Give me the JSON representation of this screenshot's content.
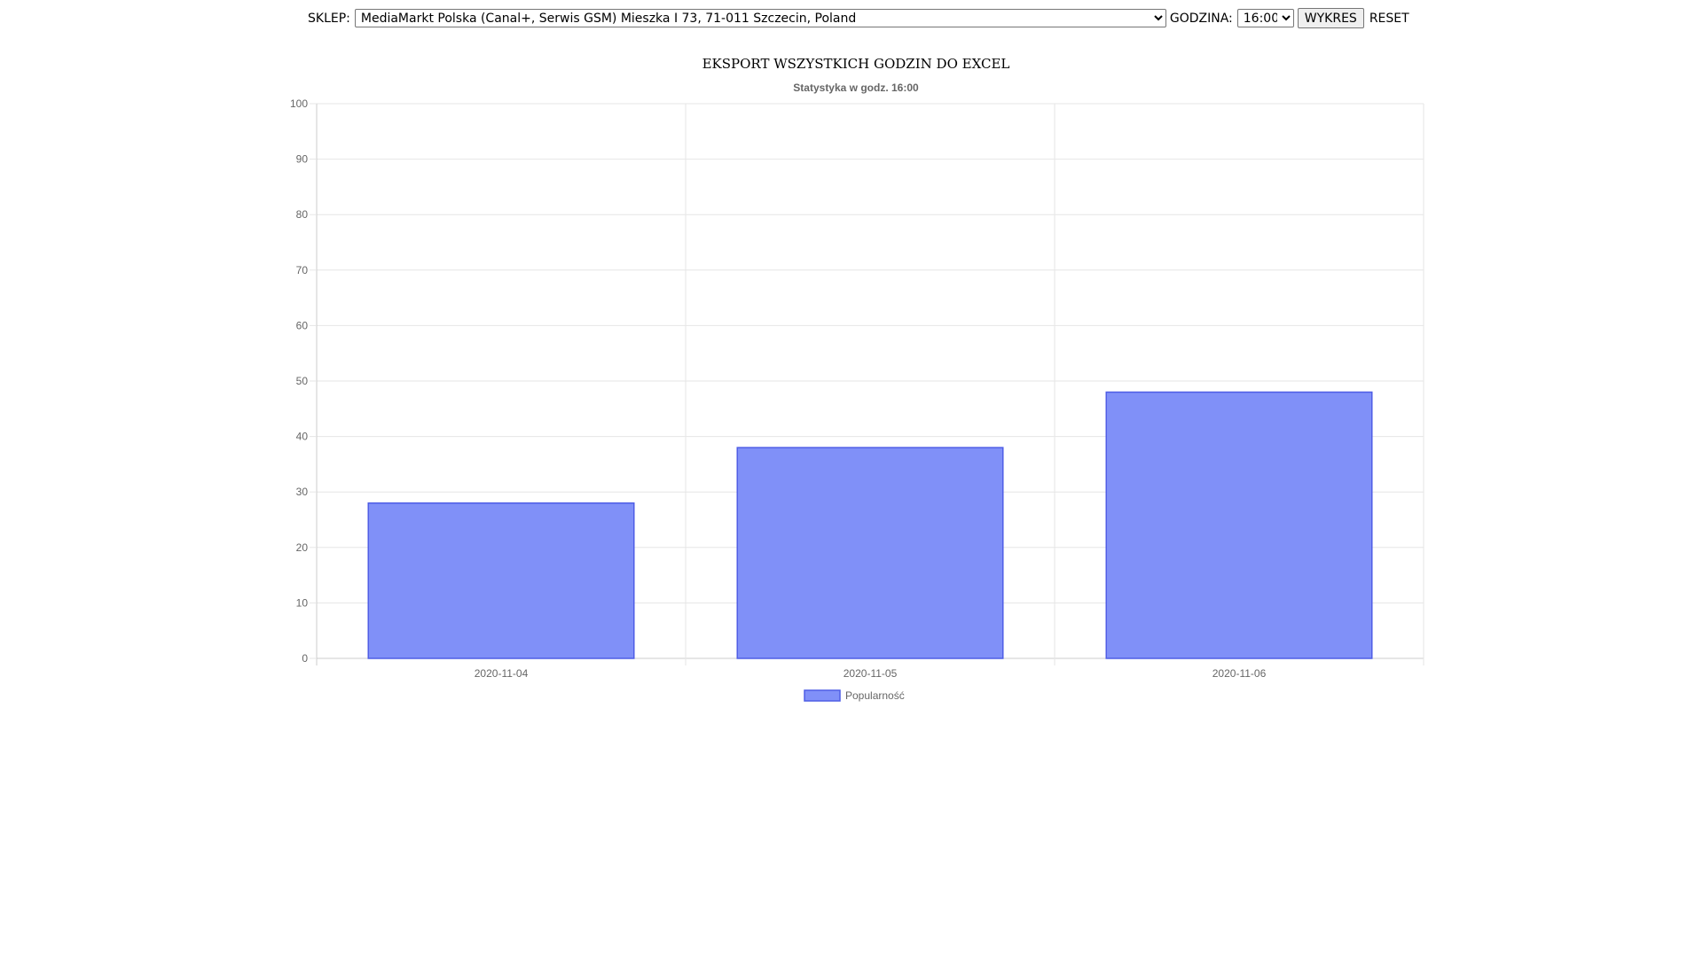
{
  "form": {
    "store_label": "SKLEP:",
    "store_selected": "MediaMarkt Polska (Canal+, Serwis GSM) Mieszka I 73, 71-011 Szczecin, Poland",
    "hour_label": "GODZINA:",
    "hour_selected": "16:00",
    "chart_button_label": "WYKRES",
    "reset_label": "RESET"
  },
  "export_link_label": "EKSPORT WSZYSTKICH GODZIN DO EXCEL",
  "chart_data": {
    "type": "bar",
    "title": "Statystyka w godz. 16:00",
    "categories": [
      "2020-11-04",
      "2020-11-05",
      "2020-11-06"
    ],
    "series": [
      {
        "name": "Popularność",
        "values": [
          28,
          38,
          48
        ]
      }
    ],
    "xlabel": "",
    "ylabel": "",
    "ylim": [
      0,
      100
    ],
    "yticks": [
      0,
      10,
      20,
      30,
      40,
      50,
      60,
      70,
      80,
      90,
      100
    ],
    "grid": true,
    "legend": "bottom",
    "colors": {
      "bar_fill": "#8090f8",
      "bar_stroke": "#4f5ee6",
      "grid": "#e6e6e6",
      "axis": "#cccccc",
      "text": "#666666"
    }
  }
}
